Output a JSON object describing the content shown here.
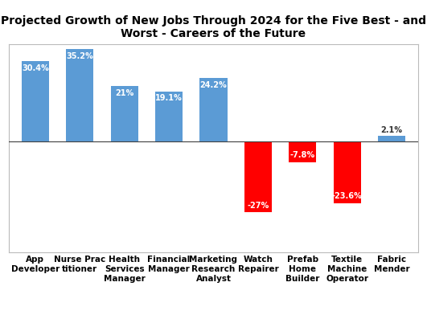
{
  "chart_data": {
    "type": "bar",
    "title": "Projected Growth of New Jobs Through 2024 for the Five Best - and Worst - Careers of the Future",
    "categories": [
      "App Developer",
      "Nurse Practitioner",
      "Health Services Manager",
      "Financial Manager",
      "Marketing Research Analyst",
      "Watch Repairer",
      "Prefab Home Builder",
      "Textile Machine Operator",
      "Fabric Mender"
    ],
    "values": [
      30.4,
      35.2,
      21,
      19.1,
      24.2,
      -27,
      -7.8,
      -23.6,
      2.1
    ],
    "value_labels": [
      "30.4%",
      "35.2%",
      "21%",
      "19.1%",
      "24.2%",
      "-27%",
      "-7.8%",
      "-23.6%",
      "2.1%"
    ],
    "colors": [
      "#5b9bd5",
      "#5b9bd5",
      "#5b9bd5",
      "#5b9bd5",
      "#5b9bd5",
      "#ff0000",
      "#ff0000",
      "#ff0000",
      "#5b9bd5"
    ],
    "ylim": [
      -42,
      37
    ],
    "data_labels": true,
    "tick_labels": "x",
    "grid": false
  }
}
